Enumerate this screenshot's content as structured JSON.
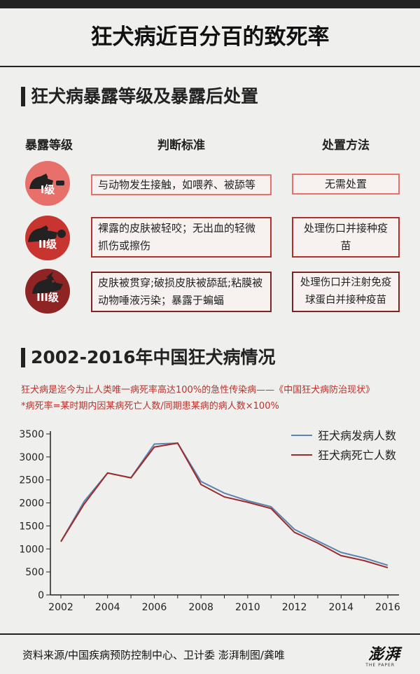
{
  "title": "狂犬病近百分百的致死率",
  "section1": {
    "title": "狂犬病暴露等级及暴露后处置",
    "headers": [
      "暴露等级",
      "判断标准",
      "处置方法"
    ],
    "rows": [
      {
        "level": "I级",
        "criteria": "与动物发生接触，如喂养、被舔等",
        "action": "无需处置",
        "color": "#e8706a"
      },
      {
        "level": "II级",
        "criteria": "裸露的皮肤被轻咬；无出血的轻微抓伤或擦伤",
        "action": "处理伤口并接种疫苗",
        "color": "#c8342f"
      },
      {
        "level": "III级",
        "criteria": "皮肤被贯穿;破损皮肤被舔舐;粘膜被动物唾液污染；暴露于蝙蝠",
        "action": "处理伤口并注射免疫球蛋白并接种疫苗",
        "color": "#8e2424"
      }
    ]
  },
  "section2": {
    "title": "2002-2016年中国狂犬病情况",
    "note1": "狂犬病是迄今为止人类唯一病死率高达100%的急性传染病——《中国狂犬病防治现状》",
    "note2": "*病死率=某时期内因某病死亡人数/同期患某病的病人数×100%"
  },
  "chart_data": {
    "type": "line",
    "x": [
      2002,
      2003,
      2004,
      2005,
      2006,
      2007,
      2008,
      2009,
      2010,
      2011,
      2012,
      2013,
      2014,
      2015,
      2016
    ],
    "series": [
      {
        "name": "狂犬病发病人数",
        "color": "#5b84b1",
        "values": [
          1159,
          2037,
          2651,
          2548,
          3279,
          3300,
          2466,
          2213,
          2048,
          1917,
          1425,
          1172,
          924,
          801,
          644
        ]
      },
      {
        "name": "狂犬病死亡人数",
        "color": "#9e2a2b",
        "values": [
          1159,
          1980,
          2651,
          2545,
          3215,
          3300,
          2400,
          2131,
          2014,
          1879,
          1361,
          1128,
          854,
          744,
          592
        ]
      }
    ],
    "xticks": [
      2002,
      2004,
      2006,
      2008,
      2010,
      2012,
      2014,
      2016
    ],
    "yticks": [
      0,
      500,
      1000,
      1500,
      2000,
      2500,
      3000,
      3500
    ],
    "ylim": [
      0,
      3500
    ],
    "xlim": [
      2002,
      2016
    ],
    "grid": false,
    "legend": "top-right"
  },
  "footer": {
    "source": "资料来源/中国疾病预防控制中心、卫计委   澎湃制图/龚唯",
    "logo": "澎湃",
    "logo_sub": "THE PAPER"
  }
}
